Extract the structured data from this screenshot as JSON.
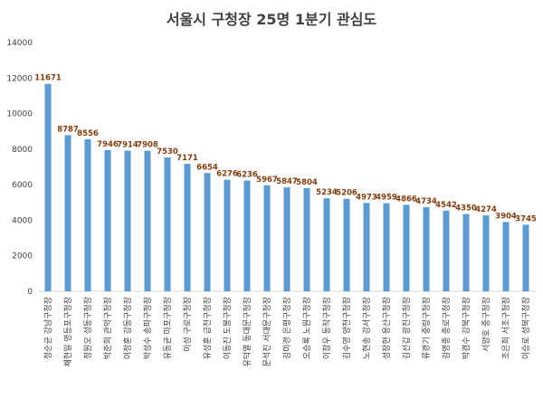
{
  "chart_data": {
    "type": "bar",
    "title": "서울시 구청장 25명 1분기 관심도",
    "xlabel": "",
    "ylabel": "",
    "ylim": [
      0,
      14000
    ],
    "yticks": [
      0,
      2000,
      4000,
      6000,
      8000,
      10000,
      12000,
      14000
    ],
    "grid": false,
    "bar_color": "#5b9bd5",
    "label_color": "#843c0c",
    "categories": [
      "정순균 강남구청장",
      "채현일 영등포구청장",
      "정원오 성동구청장",
      "박준희 관악구청장",
      "이정훈 강동구청장",
      "박성수 송파구청장",
      "유동균 마포구청장",
      "이성 구로구청장",
      "유성훈 금천구청장",
      "이동진 도봉구청장",
      "유덕열 동대문구청장",
      "문석진 서대문구청장",
      "김미경 은평구청장",
      "오승록 노원구청장",
      "이창우 동작구청장",
      "김수영 양천구청장",
      "노현송 강서구청장",
      "성장현 용산구청장",
      "김선갑 광진구청장",
      "류경기 중랑구청장",
      "김영종 종로구청장",
      "박겸수 강북구청장",
      "서양호 중구청장",
      "조은희 서초구청장",
      "이승로 성북구청장"
    ],
    "values": [
      11671,
      8787,
      8556,
      7946,
      7914,
      7908,
      7530,
      7171,
      6654,
      6276,
      6236,
      5967,
      5847,
      5804,
      5234,
      5206,
      4973,
      4959,
      4866,
      4734,
      4542,
      4350,
      4274,
      3904,
      3745
    ]
  }
}
